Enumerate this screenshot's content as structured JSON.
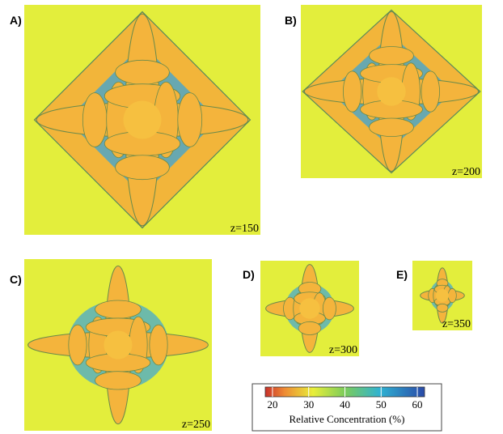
{
  "panels": [
    {
      "label": "A)",
      "z": "z=150"
    },
    {
      "label": "B)",
      "z": "z=200"
    },
    {
      "label": "C)",
      "z": "z=250"
    },
    {
      "label": "D)",
      "z": "z=300"
    },
    {
      "label": "E)",
      "z": "z=350"
    }
  ],
  "colorbar": {
    "label": "Relative Concentration (%)",
    "lim": [
      18,
      62
    ],
    "ticks": [
      20,
      30,
      40,
      50,
      60
    ]
  }
}
